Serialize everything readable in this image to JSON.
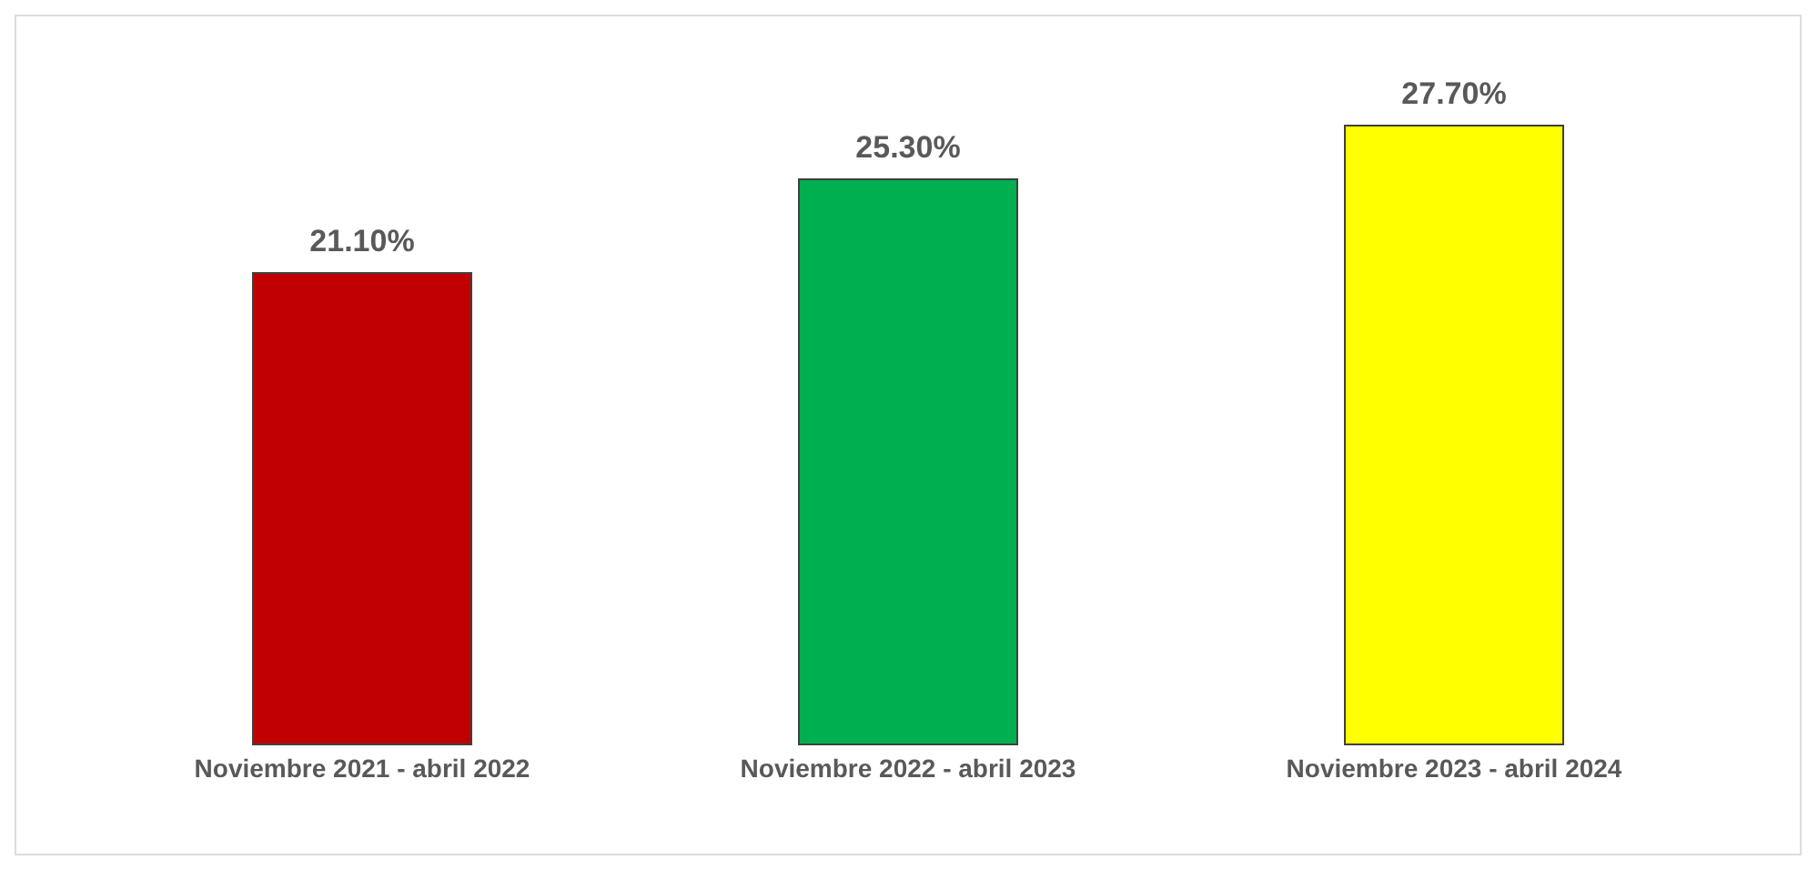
{
  "chart_data": {
    "type": "bar",
    "categories": [
      "Noviembre 2021 - abril 2022",
      "Noviembre 2022 - abril 2023",
      "Noviembre 2023 - abril 2024"
    ],
    "values": [
      21.1,
      25.3,
      27.7
    ],
    "value_labels": [
      "21.10%",
      "25.30%",
      "27.70%"
    ],
    "colors": [
      "#c00000",
      "#00b050",
      "#ffff00"
    ],
    "tick_labels": "x"
  }
}
